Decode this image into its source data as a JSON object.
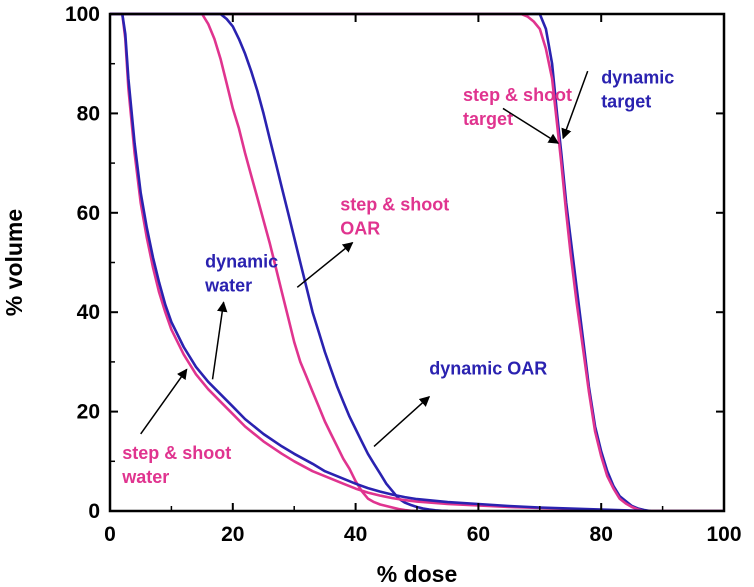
{
  "chart_data": {
    "type": "line",
    "xlabel": "% dose",
    "ylabel": "% volume",
    "xlim": [
      0,
      100
    ],
    "ylim": [
      0,
      100
    ],
    "x_ticks": [
      "0",
      "20",
      "40",
      "60",
      "80",
      "100"
    ],
    "y_ticks": [
      "0",
      "20",
      "40",
      "60",
      "80",
      "100"
    ],
    "grid": false,
    "colors": {
      "step_and_shoot": "#e0348f",
      "dynamic": "#2a22b0"
    },
    "series": [
      {
        "name": "dynamic target",
        "color": "#2a22b0",
        "x": [
          0,
          68,
          70,
          71,
          72,
          72.8,
          73.5,
          74.3,
          75,
          76,
          77,
          78,
          79,
          80,
          81,
          82,
          83,
          84,
          85,
          86,
          87,
          88,
          100
        ],
        "y": [
          100,
          100,
          100,
          97,
          90,
          80,
          72,
          62,
          55,
          45,
          35,
          25,
          17,
          12,
          8,
          5,
          3,
          2,
          1,
          0.5,
          0.2,
          0,
          0
        ]
      },
      {
        "name": "step & shoot target",
        "color": "#e0348f",
        "x": [
          0,
          67,
          68,
          69,
          70,
          71,
          72,
          72.8,
          73.5,
          74.3,
          75,
          76,
          77,
          78,
          79,
          80,
          81,
          82,
          83,
          84,
          85,
          86,
          87,
          100
        ],
        "y": [
          100,
          100,
          99.5,
          98.5,
          97,
          93,
          87,
          78,
          70,
          60,
          52,
          42,
          33,
          24,
          16,
          11,
          7,
          4.5,
          2.5,
          1.5,
          0.8,
          0.3,
          0,
          0
        ]
      },
      {
        "name": "step & shoot OAR",
        "color": "#e0348f",
        "x": [
          0,
          15,
          16,
          17,
          18,
          19,
          20,
          21,
          22,
          23,
          24,
          25,
          26,
          27,
          28,
          29,
          30,
          31,
          32,
          33,
          34,
          35,
          36,
          37,
          38,
          39,
          40,
          41,
          42,
          43,
          44,
          45,
          46,
          47,
          48,
          49,
          50
        ],
        "y": [
          100,
          100,
          98,
          95,
          91,
          86,
          81,
          77,
          72,
          67.5,
          63,
          58.5,
          54,
          49,
          44,
          39,
          34,
          30,
          27,
          24,
          21,
          18,
          15.5,
          13,
          10.5,
          8.5,
          6,
          4,
          2.5,
          1.8,
          1.3,
          1.0,
          0.7,
          0.4,
          0.2,
          0.05,
          0
        ]
      },
      {
        "name": "dynamic OAR",
        "color": "#2a22b0",
        "x": [
          0,
          18,
          19,
          20,
          21,
          22,
          23,
          24,
          25,
          26,
          27,
          28,
          29,
          30,
          31,
          32,
          33,
          34,
          35,
          36,
          37,
          38,
          39,
          40,
          41,
          42,
          43,
          44,
          45,
          46,
          47,
          48,
          49,
          50,
          51,
          52,
          53,
          54,
          55
        ],
        "y": [
          100,
          100,
          99,
          97.5,
          95,
          92,
          88.5,
          84.5,
          80,
          75,
          70,
          65,
          60,
          55,
          50,
          45,
          40,
          36,
          32,
          28.5,
          25,
          22,
          19,
          16.5,
          14,
          11.5,
          9.5,
          7.5,
          5.5,
          4,
          2.5,
          1.7,
          1.2,
          0.8,
          0.5,
          0.3,
          0.15,
          0.05,
          0
        ]
      },
      {
        "name": "step & shoot water",
        "color": "#e0348f",
        "x": [
          0,
          2,
          2.5,
          3,
          4,
          5,
          6,
          7,
          8,
          9,
          10,
          12,
          14,
          16,
          18,
          20,
          22,
          25,
          28,
          30,
          33,
          35,
          38,
          40,
          42,
          44,
          46,
          48,
          50,
          55,
          60,
          65,
          70,
          75,
          80,
          85,
          87
        ],
        "y": [
          100,
          100,
          95,
          85,
          72,
          62,
          55,
          49,
          44,
          40,
          36.5,
          31.5,
          27.5,
          24.5,
          22,
          19.5,
          17,
          14,
          11.5,
          10,
          8,
          7,
          5.5,
          4.5,
          3.7,
          3.1,
          2.6,
          2.2,
          1.9,
          1.4,
          1.1,
          0.8,
          0.6,
          0.4,
          0.2,
          0.05,
          0
        ]
      },
      {
        "name": "dynamic water",
        "color": "#2a22b0",
        "x": [
          0,
          2,
          2.5,
          3,
          4,
          5,
          6,
          7,
          8,
          9,
          10,
          12,
          14,
          16,
          18,
          20,
          22,
          25,
          28,
          30,
          33,
          35,
          38,
          40,
          42,
          44,
          46,
          48,
          50,
          55,
          60,
          65,
          70,
          75,
          80,
          85,
          88
        ],
        "y": [
          100,
          100,
          96,
          87,
          74,
          64,
          57,
          51,
          46,
          41.5,
          38,
          33,
          29,
          26,
          23.5,
          21,
          18.5,
          15.5,
          13,
          11.5,
          9.5,
          8,
          6.5,
          5.5,
          4.6,
          3.9,
          3.3,
          2.8,
          2.4,
          1.8,
          1.4,
          1.0,
          0.7,
          0.5,
          0.3,
          0.1,
          0
        ]
      }
    ],
    "annotations": [
      {
        "id": "ss-target",
        "lines": [
          "step & shoot",
          "target"
        ],
        "color": "#e0348f",
        "text_at": [
          57.5,
          82.5
        ],
        "arrow_from": [
          64,
          81
        ],
        "arrow_to": [
          73,
          74
        ]
      },
      {
        "id": "dyn-target",
        "lines": [
          "dynamic",
          "target"
        ],
        "color": "#2a22b0",
        "text_at": [
          80,
          86
        ],
        "arrow_from": [
          77.8,
          88.5
        ],
        "arrow_to": [
          73.8,
          75
        ]
      },
      {
        "id": "ss-oar",
        "lines": [
          "step & shoot",
          "OAR"
        ],
        "color": "#e0348f",
        "text_at": [
          37.5,
          60.5
        ],
        "arrow_from": [
          30.5,
          45
        ],
        "arrow_to": [
          39.5,
          54
        ]
      },
      {
        "id": "dyn-water",
        "lines": [
          "dynamic",
          "water"
        ],
        "color": "#2a22b0",
        "text_at": [
          15.5,
          49
        ],
        "arrow_from": [
          16.7,
          26.5
        ],
        "arrow_to": [
          18.5,
          42
        ]
      },
      {
        "id": "dyn-oar",
        "lines": [
          "dynamic OAR"
        ],
        "color": "#2a22b0",
        "text_at": [
          52,
          27.5
        ],
        "arrow_from": [
          43,
          13
        ],
        "arrow_to": [
          52,
          23
        ]
      },
      {
        "id": "ss-water",
        "lines": [
          "step & shoot",
          "water"
        ],
        "color": "#e0348f",
        "text_at": [
          2,
          10.5
        ],
        "arrow_from": [
          5,
          15.5
        ],
        "arrow_to": [
          12.5,
          28.5
        ]
      }
    ]
  }
}
